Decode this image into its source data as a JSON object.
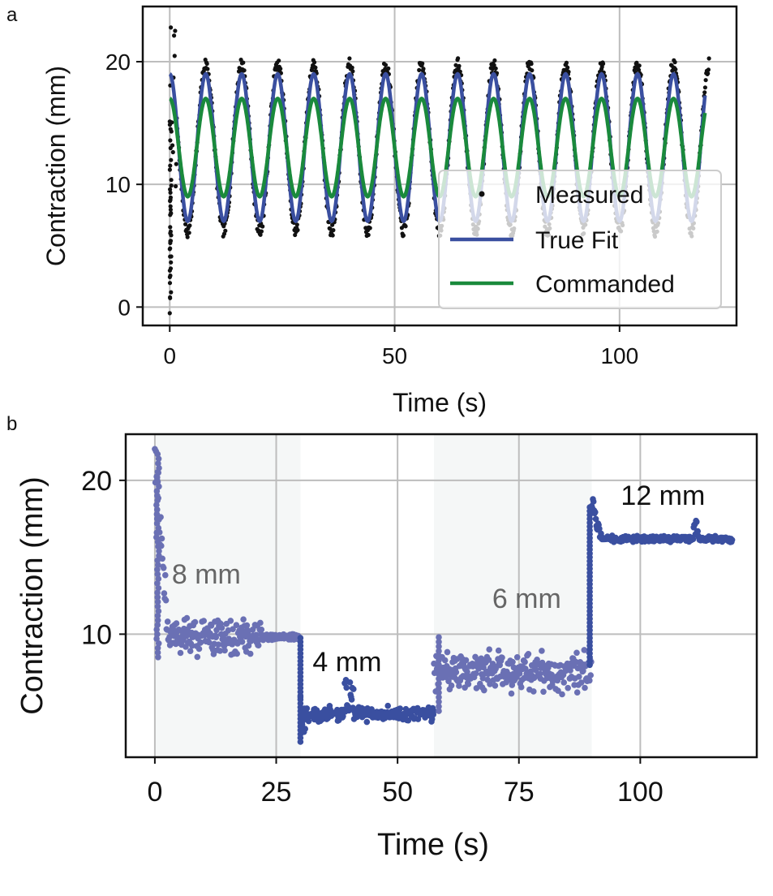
{
  "chart_data": [
    {
      "panel": "a",
      "type": "line",
      "xlabel": "Time (s)",
      "ylabel": "Contraction (mm)",
      "xlim": [
        -6,
        126
      ],
      "ylim": [
        -1.5,
        24.5
      ],
      "xticks": [
        0,
        50,
        100
      ],
      "xtick_labels": [
        "0",
        "50",
        "100"
      ],
      "yticks": [
        0,
        10,
        20
      ],
      "ytick_labels": [
        "0",
        "10",
        "20"
      ],
      "grid": true,
      "legend_position": "bottom-right",
      "legend": [
        "Measured",
        "True Fit",
        "Commanded"
      ],
      "series": [
        {
          "name": "Measured",
          "style": "markers",
          "color": "#111111",
          "description": "Oscillating measured contraction tracking the fit, with an initial transient up to ~23 mm and a dip to ~0 mm near t=0",
          "period": 8.0,
          "mean": 13.0,
          "amplitude": 6.5,
          "t_start": 0,
          "t_end": 120,
          "transient": {
            "max": 23.2,
            "min": -0.5
          }
        },
        {
          "name": "True Fit",
          "style": "line",
          "color": "#3a4fa0",
          "period": 8.0,
          "mean": 13.0,
          "amplitude": 6.0,
          "phase_peak_time": 0,
          "t_start": 0,
          "t_end": 119
        },
        {
          "name": "Commanded",
          "style": "line",
          "color": "#1a8a3c",
          "period": 8.0,
          "mean": 13.0,
          "amplitude": 4.0,
          "phase_peak_time": 0,
          "t_start": 0,
          "t_end": 119
        }
      ]
    },
    {
      "panel": "b",
      "type": "scatter",
      "xlabel": "Time (s)",
      "ylabel": "Contraction (mm)",
      "xlim": [
        -6,
        124
      ],
      "ylim": [
        2,
        23
      ],
      "xticks": [
        0,
        25,
        50,
        75,
        100
      ],
      "xtick_labels": [
        "0",
        "25",
        "50",
        "75",
        "100"
      ],
      "yticks": [
        10,
        20
      ],
      "ytick_labels": [
        "10",
        "20"
      ],
      "grid": true,
      "shaded_regions": [
        [
          0,
          30
        ],
        [
          57.5,
          90
        ]
      ],
      "annotations": [
        {
          "text": "8 mm",
          "x": 3.5,
          "y": 13.3,
          "color": "#666666"
        },
        {
          "text": "4 mm",
          "x": 32.5,
          "y": 7.6,
          "color": "#111111"
        },
        {
          "text": "6 mm",
          "x": 69.5,
          "y": 11.7,
          "color": "#666666"
        },
        {
          "text": "12 mm",
          "x": 96,
          "y": 18.4,
          "color": "#111111"
        }
      ],
      "segments": [
        {
          "name": "8 mm step",
          "t_start": 0,
          "t_end": 30,
          "level": 9.8,
          "color": "#6a70b4",
          "initial_peak": 21.8
        },
        {
          "name": "4 mm step",
          "t_start": 30,
          "t_end": 57.5,
          "level": 4.8,
          "color": "#3a4fa0",
          "initial_dip": 3.0
        },
        {
          "name": "6 mm step",
          "t_start": 57.5,
          "t_end": 90,
          "level": 7.6,
          "color": "#6a70b4"
        },
        {
          "name": "12 mm step",
          "t_start": 90,
          "t_end": 119,
          "level": 16.2,
          "color": "#3a4fa0",
          "initial_peak": 18.6
        }
      ]
    }
  ],
  "figure": {
    "panel_a_letter": "a",
    "panel_b_letter": "b"
  }
}
